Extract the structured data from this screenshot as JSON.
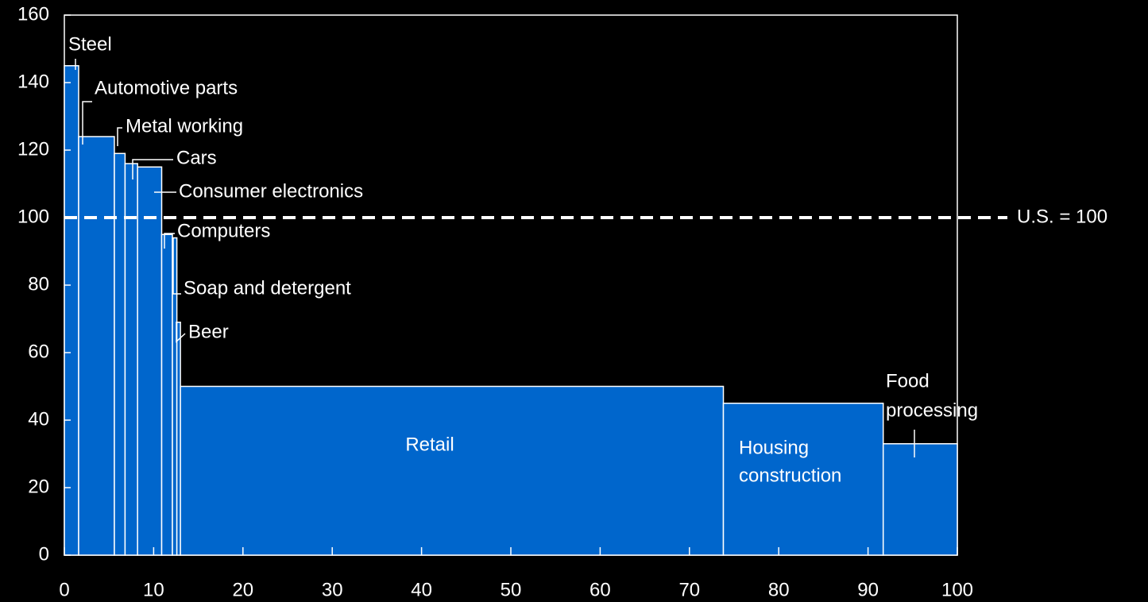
{
  "chart_data": {
    "type": "bar",
    "variant": "variable-width",
    "x": {
      "ticks": [
        "0",
        "10",
        "20",
        "30",
        "40",
        "50",
        "60",
        "70",
        "80",
        "90",
        "100"
      ],
      "range": [
        0,
        100
      ]
    },
    "y": {
      "ticks": [
        "0",
        "20",
        "40",
        "60",
        "80",
        "100",
        "120",
        "140",
        "160"
      ],
      "range": [
        0,
        160
      ]
    },
    "grid": false,
    "bar_color": "#0066CC",
    "bar_outline": "#FFFFFF",
    "reference_line": {
      "value": 100,
      "label": "U.S. = 100",
      "style": "dashed",
      "color": "#FFFFFF"
    },
    "bars": [
      {
        "name": "Steel",
        "label": "Steel",
        "x0": 0,
        "x1": 1.6,
        "value": 145
      },
      {
        "name": "Automotive parts",
        "label": "Automotive parts",
        "x0": 1.6,
        "x1": 5.6,
        "value": 124
      },
      {
        "name": "Metal working",
        "label": "Metal working",
        "x0": 5.6,
        "x1": 6.8,
        "value": 119
      },
      {
        "name": "Cars",
        "label": "Cars",
        "x0": 6.8,
        "x1": 8.2,
        "value": 116
      },
      {
        "name": "Consumer electronics",
        "label": "Consumer electronics",
        "x0": 8.2,
        "x1": 10.9,
        "value": 115
      },
      {
        "name": "Computers",
        "label": "Computers",
        "x0": 10.9,
        "x1": 12.1,
        "value": 95
      },
      {
        "name": "Soap and detergent",
        "label": "Soap and detergent",
        "x0": 12.1,
        "x1": 12.6,
        "value": 94
      },
      {
        "name": "Beer",
        "label": "Beer",
        "x0": 12.6,
        "x1": 13.0,
        "value": 69
      },
      {
        "name": "Retail",
        "label_lines": [
          "Retail"
        ],
        "x0": 13.0,
        "x1": 73.8,
        "value": 50
      },
      {
        "name": "Housing construction",
        "label_lines": [
          "Housing",
          "construction"
        ],
        "x0": 73.8,
        "x1": 91.7,
        "value": 45
      },
      {
        "name": "Food processing",
        "label_lines": [
          "Food",
          "processing"
        ],
        "x0": 91.7,
        "x1": 100,
        "value": 33
      }
    ]
  }
}
